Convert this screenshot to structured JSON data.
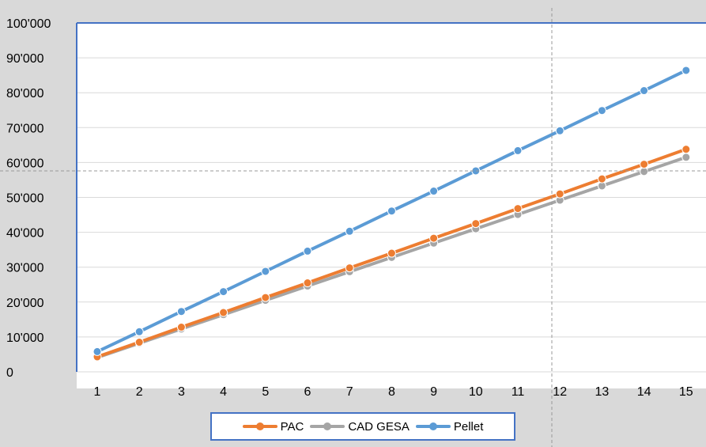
{
  "chart_data": {
    "type": "line",
    "categories": [
      "1",
      "2",
      "3",
      "4",
      "5",
      "6",
      "7",
      "8",
      "9",
      "10",
      "11",
      "12",
      "13",
      "14",
      "15"
    ],
    "series": [
      {
        "name": "PAC",
        "color": "#ed7d31",
        "values": [
          4300,
          8500,
          12800,
          17000,
          21300,
          25500,
          29800,
          34000,
          38300,
          42500,
          46800,
          51000,
          55300,
          59500,
          63800
        ]
      },
      {
        "name": "CAD GESA",
        "color": "#a5a5a5",
        "values": [
          4100,
          8200,
          12300,
          16400,
          20500,
          24600,
          28700,
          32800,
          36900,
          41000,
          45100,
          49200,
          53300,
          57400,
          61500
        ]
      },
      {
        "name": "Pellet",
        "color": "#5b9bd5",
        "values": [
          5800,
          11500,
          17300,
          23000,
          28800,
          34600,
          40300,
          46100,
          51800,
          57600,
          63400,
          69100,
          74900,
          80600,
          86400
        ]
      }
    ],
    "yticks": [
      "0",
      "10'000",
      "20'000",
      "30'000",
      "40'000",
      "50'000",
      "60'000",
      "70'000",
      "80'000",
      "90'000",
      "100'000"
    ],
    "ylim": [
      0,
      100000
    ],
    "grid": true,
    "legend_position": "bottom",
    "title": "",
    "xlabel": "",
    "ylabel": ""
  }
}
